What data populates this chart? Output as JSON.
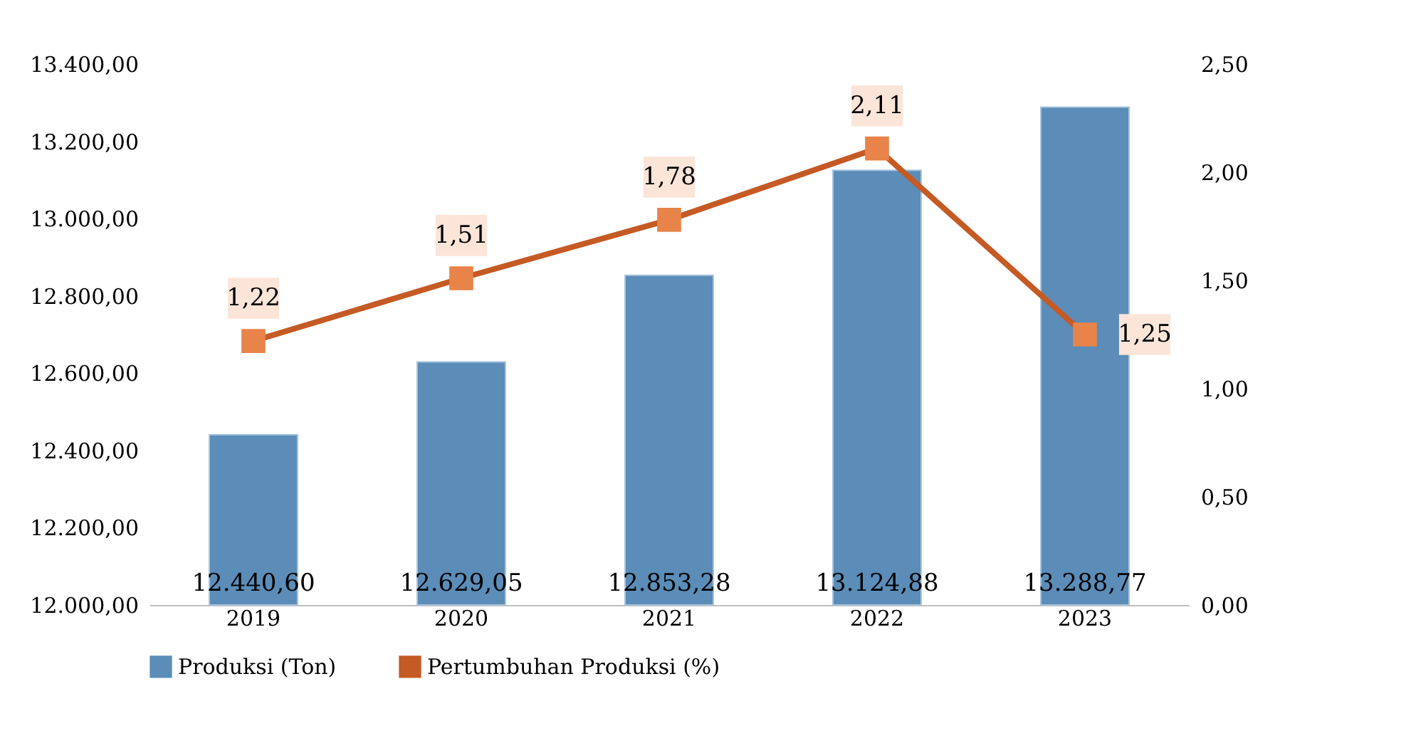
{
  "chart_data": {
    "type": "bar",
    "categories": [
      "2019",
      "2020",
      "2021",
      "2022",
      "2023"
    ],
    "series": [
      {
        "name": "Produksi (Ton)",
        "color": "#5b8db8",
        "values": [
          12440.6,
          12629.05,
          12853.28,
          13124.88,
          13288.77
        ],
        "value_labels": [
          "12.440,60",
          "12.629,05",
          "12.853,28",
          "13.124,88",
          "13.288,77"
        ]
      },
      {
        "name": "Pertumbuhan Produksi (%)",
        "type": "line",
        "axis": "y2",
        "color": "#c55a24",
        "marker": "square",
        "values": [
          1.22,
          1.51,
          1.78,
          2.11,
          1.25
        ],
        "value_labels": [
          "1,22",
          "1,51",
          "1,78",
          "2,11",
          "1,25"
        ]
      }
    ],
    "ylim": [
      12000,
      13400
    ],
    "yticks": [
      {
        "value": 12000,
        "label": "12.000,00"
      },
      {
        "value": 12200,
        "label": "12.200,00"
      },
      {
        "value": 12400,
        "label": "12.400,00"
      },
      {
        "value": 12600,
        "label": "12.600,00"
      },
      {
        "value": 12800,
        "label": "12.800,00"
      },
      {
        "value": 13000,
        "label": "13.000,00"
      },
      {
        "value": 13200,
        "label": "13.200,00"
      },
      {
        "value": 13400,
        "label": "13.400,00"
      }
    ],
    "y2lim": [
      0,
      2.5
    ],
    "y2ticks": [
      {
        "value": 0,
        "label": "0,00"
      },
      {
        "value": 0.5,
        "label": "0,50"
      },
      {
        "value": 1,
        "label": "1,00"
      },
      {
        "value": 1.5,
        "label": "1,50"
      },
      {
        "value": 2,
        "label": "2,00"
      },
      {
        "value": 2.5,
        "label": "2,50"
      }
    ],
    "grid": false,
    "legend": "bottom"
  }
}
